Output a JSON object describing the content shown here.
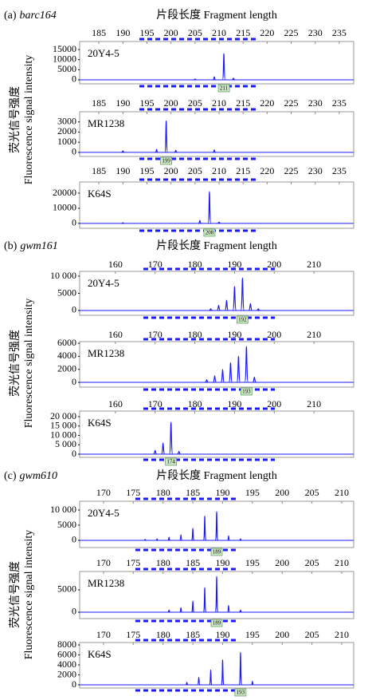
{
  "chart_data": [
    {
      "type": "line",
      "label": "(a)",
      "marker": "barc164",
      "title": "片段长度 Fragment length",
      "ylabel": [
        "荧光信号强度",
        "Fluorescence signal intensity"
      ],
      "color": "#1a1aff",
      "xlim": [
        181,
        238
      ],
      "xticks": [
        185,
        190,
        195,
        200,
        205,
        210,
        215,
        220,
        225,
        230,
        235
      ],
      "subplots": [
        {
          "name": "20Y4-5",
          "ylim": [
            -2000,
            19000
          ],
          "yticks": [
            0,
            5000,
            10000,
            15000
          ],
          "peak_label": 211,
          "peaks": [
            205,
            209,
            211,
            213
          ],
          "values": [
            400,
            1500,
            13000,
            800
          ]
        },
        {
          "name": "MR1238",
          "ylim": [
            -400,
            4000
          ],
          "yticks": [
            0,
            1000,
            2000,
            3000
          ],
          "peak_label": 199,
          "peaks": [
            190,
            197,
            199,
            201,
            209
          ],
          "values": [
            150,
            300,
            3100,
            200,
            250
          ]
        },
        {
          "name": "K64S",
          "ylim": [
            -3200,
            27400
          ],
          "yticks": [
            0,
            10000,
            20000
          ],
          "peak_label": 208,
          "peaks": [
            190,
            206,
            208,
            210
          ],
          "values": [
            500,
            2000,
            21000,
            1000
          ]
        }
      ]
    },
    {
      "type": "line",
      "label": "(b)",
      "marker": "gwm161",
      "title": "片段长度 Fragment length",
      "ylabel": [
        "荧光信号强度",
        "Fluorescence signal intensity"
      ],
      "color": "#1a1aff",
      "xlim": [
        151,
        220
      ],
      "xticks": [
        160,
        170,
        180,
        190,
        200,
        210
      ],
      "subplots": [
        {
          "name": "20Y4-5",
          "ylim": [
            -1400,
            11400
          ],
          "yticks": [
            0,
            5000,
            {
              "value": 10000,
              "label": "10 000"
            }
          ],
          "peak_label": 192,
          "peaks": [
            184,
            186,
            188,
            190,
            192,
            194,
            196
          ],
          "values": [
            500,
            1500,
            3000,
            7000,
            9500,
            2000,
            500
          ]
        },
        {
          "name": "MR1238",
          "ylim": [
            -730,
            6250
          ],
          "yticks": [
            0,
            2000,
            4000,
            6000
          ],
          "peak_label": 193,
          "peaks": [
            183,
            185,
            187,
            189,
            191,
            193,
            195
          ],
          "values": [
            400,
            1000,
            2000,
            3000,
            4000,
            5500,
            800
          ]
        },
        {
          "name": "K64S",
          "ylim": [
            -1700,
            23000
          ],
          "yticks": [
            0,
            {
              "value": 5000,
              "label": "5 000"
            },
            {
              "value": 10000,
              "label": "10 000"
            },
            {
              "value": 15000,
              "label": "15 000"
            },
            {
              "value": 20000,
              "label": "20 000"
            }
          ],
          "peak_label": 174,
          "peaks": [
            170,
            172,
            174,
            176
          ],
          "values": [
            2000,
            6000,
            17000,
            1500
          ]
        }
      ]
    },
    {
      "type": "line",
      "label": "(c)",
      "marker": "gwm610",
      "title": "片段长度 Fragment length",
      "ylabel": [
        "荧光信号强度",
        "Fluorescence signal intensity"
      ],
      "color": "#1a1aff",
      "xlim": [
        166,
        212
      ],
      "xticks": [
        170,
        175,
        180,
        185,
        190,
        195,
        200,
        205,
        210
      ],
      "subplots": [
        {
          "name": "20Y4-5",
          "ylim": [
            -2370,
            12900
          ],
          "yticks": [
            0,
            5000,
            {
              "value": 10000,
              "label": "10 000"
            }
          ],
          "peak_label": 189,
          "peaks": [
            177,
            179,
            181,
            183,
            185,
            187,
            189,
            191,
            193
          ],
          "values": [
            300,
            500,
            1000,
            1800,
            4000,
            8000,
            9500,
            1500,
            500
          ]
        },
        {
          "name": "MR1238",
          "ylim": [
            -1430,
            9100
          ],
          "yticks": [
            0,
            5000
          ],
          "peak_label": 189,
          "peaks": [
            181,
            183,
            185,
            187,
            189,
            191,
            193
          ],
          "values": [
            500,
            1000,
            2500,
            5500,
            8000,
            1500,
            500
          ]
        },
        {
          "name": "K64S",
          "ylim": [
            -640,
            8480
          ],
          "yticks": [
            0,
            2000,
            4000,
            6000,
            8000
          ],
          "peak_label": 193,
          "peaks": [
            184,
            186,
            188,
            190,
            193,
            195
          ],
          "values": [
            500,
            1500,
            3000,
            5000,
            6500,
            700
          ]
        }
      ]
    }
  ]
}
